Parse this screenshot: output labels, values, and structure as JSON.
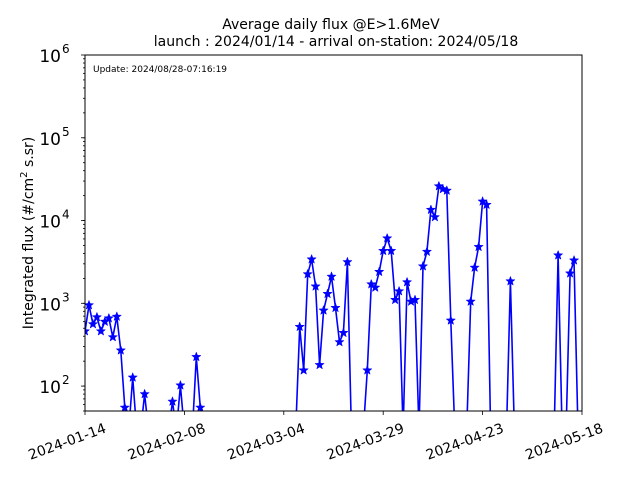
{
  "chart_data": {
    "type": "line",
    "title": "Average daily flux @E>1.6MeV",
    "subtitle": "launch : 2024/01/14 - arrival on-station: 2024/05/18",
    "xlabel": "",
    "ylabel": "Integrated flux (#/cm²s.sr)",
    "ylabel_parts": {
      "pre": "Integrated flux (#/cm",
      "sup": "2",
      "post": " s.sr)"
    },
    "annotation": "Update: 2024/08/28-07:16:19",
    "yscale": "log",
    "ylim": [
      50,
      1000000
    ],
    "xlim": [
      "2024-01-14",
      "2024-05-18"
    ],
    "xticks": [
      "2024-01-14",
      "2024-02-08",
      "2024-03-04",
      "2024-03-29",
      "2024-04-23",
      "2024-05-18"
    ],
    "yticks": [
      {
        "value": 100,
        "base": "10",
        "exp": "2"
      },
      {
        "value": 1000,
        "base": "10",
        "exp": "3"
      },
      {
        "value": 10000,
        "base": "10",
        "exp": "4"
      },
      {
        "value": 100000,
        "base": "10",
        "exp": "5"
      },
      {
        "value": 1000000,
        "base": "10",
        "exp": "6"
      }
    ],
    "grid": false,
    "series": [
      {
        "color": "#0000ff",
        "marker": "star",
        "x": [
          "2024-01-14",
          "2024-01-15",
          "2024-01-16",
          "2024-01-17",
          "2024-01-18",
          "2024-01-19",
          "2024-01-20",
          "2024-01-21",
          "2024-01-22",
          "2024-01-23",
          "2024-01-24",
          "2024-01-25",
          "2024-01-26",
          "2024-01-27",
          "2024-01-28",
          "2024-01-29",
          "2024-01-30",
          "2024-01-31",
          "2024-02-01",
          "2024-02-02",
          "2024-02-03",
          "2024-02-04",
          "2024-02-05",
          "2024-02-06",
          "2024-02-07",
          "2024-02-08",
          "2024-02-09",
          "2024-02-10",
          "2024-02-11",
          "2024-02-12",
          "2024-02-13",
          "2024-02-14",
          "2024-02-15",
          "2024-02-16",
          "2024-02-17",
          "2024-02-18",
          "2024-02-19",
          "2024-02-20",
          "2024-02-21",
          "2024-02-22",
          "2024-02-23",
          "2024-02-24",
          "2024-02-25",
          "2024-02-26",
          "2024-02-27",
          "2024-02-28",
          "2024-02-29",
          "2024-03-01",
          "2024-03-02",
          "2024-03-03",
          "2024-03-04",
          "2024-03-05",
          "2024-03-06",
          "2024-03-07",
          "2024-03-08",
          "2024-03-09",
          "2024-03-10",
          "2024-03-11",
          "2024-03-12",
          "2024-03-13",
          "2024-03-14",
          "2024-03-15",
          "2024-03-16",
          "2024-03-17",
          "2024-03-18",
          "2024-03-19",
          "2024-03-20",
          "2024-03-21",
          "2024-03-22",
          "2024-03-23",
          "2024-03-24",
          "2024-03-25",
          "2024-03-26",
          "2024-03-27",
          "2024-03-28",
          "2024-03-29",
          "2024-03-30",
          "2024-03-31",
          "2024-04-01",
          "2024-04-02",
          "2024-04-03",
          "2024-04-04",
          "2024-04-05",
          "2024-04-06",
          "2024-04-07",
          "2024-04-08",
          "2024-04-09",
          "2024-04-10",
          "2024-04-11",
          "2024-04-12",
          "2024-04-13",
          "2024-04-14",
          "2024-04-15",
          "2024-04-16",
          "2024-04-17",
          "2024-04-18",
          "2024-04-19",
          "2024-04-20",
          "2024-04-21",
          "2024-04-22",
          "2024-04-23",
          "2024-04-24",
          "2024-04-25",
          "2024-04-26",
          "2024-04-27",
          "2024-04-28",
          "2024-04-29",
          "2024-04-30",
          "2024-05-01",
          "2024-05-02",
          "2024-05-03",
          "2024-05-04",
          "2024-05-05",
          "2024-05-06",
          "2024-05-07",
          "2024-05-08",
          "2024-05-09",
          "2024-05-10",
          "2024-05-11",
          "2024-05-12",
          "2024-05-13",
          "2024-05-14",
          "2024-05-15",
          "2024-05-16",
          "2024-05-17",
          "2024-05-18"
        ],
        "y": [
          460,
          950,
          560,
          680,
          460,
          600,
          660,
          390,
          690,
          270,
          55,
          null,
          127,
          null,
          null,
          80,
          null,
          null,
          null,
          null,
          null,
          null,
          65,
          null,
          102,
          null,
          null,
          null,
          225,
          55,
          null,
          null,
          null,
          null,
          null,
          null,
          null,
          null,
          null,
          null,
          null,
          null,
          null,
          null,
          null,
          null,
          null,
          null,
          null,
          null,
          null,
          null,
          null,
          null,
          520,
          155,
          2250,
          3400,
          1600,
          180,
          820,
          1300,
          2100,
          880,
          340,
          440,
          3150,
          null,
          null,
          null,
          null,
          155,
          1700,
          1550,
          2400,
          4300,
          6100,
          4300,
          1100,
          1400,
          null,
          1800,
          1050,
          1100,
          null,
          2800,
          4200,
          13500,
          11000,
          26000,
          24000,
          23000,
          620,
          null,
          null,
          null,
          null,
          1050,
          2700,
          4800,
          17000,
          15500,
          null,
          null,
          null,
          null,
          null,
          1850,
          null,
          null,
          null,
          null,
          null,
          null,
          null,
          null,
          null,
          null,
          null,
          3800,
          null,
          null,
          2300,
          3300,
          null,
          null
        ]
      }
    ]
  }
}
